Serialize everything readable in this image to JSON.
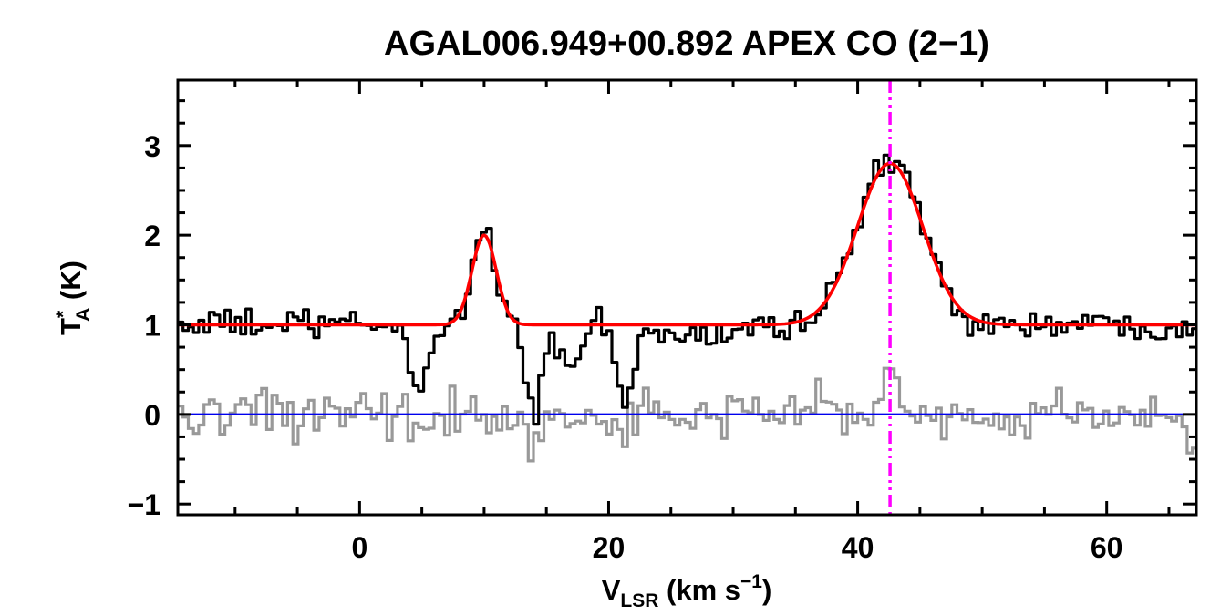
{
  "figure": {
    "background": "#ffffff",
    "frame_color": "#000000"
  },
  "chart_data": {
    "type": "line",
    "title": "AGAL006.949+00.892  APEX CO (2−1)",
    "xlabel": {
      "v": "V",
      "sub": "LSR",
      "mid": " (km s",
      "sup": "−1",
      "close": ")"
    },
    "ylabel": {
      "t": "T",
      "sup": "*",
      "sub": "A",
      "unit": " (K)"
    },
    "xlim": [
      -14.6,
      67.2
    ],
    "ylim": [
      -1.12,
      3.73
    ],
    "xticks": [
      0,
      20,
      40,
      60
    ],
    "xminor_step": 5,
    "yticks": [
      -1,
      0,
      1,
      2,
      3
    ],
    "yminor_step": 0.25,
    "channel_width": 0.42,
    "baseline_level": 1.0,
    "series": [
      {
        "name": "spectrum",
        "style": "histogram",
        "color": "#000000",
        "line_width": 3.2,
        "baseline": 1.0,
        "noise_rms": 0.085,
        "seed": 1234,
        "emission": [
          {
            "center": 10.0,
            "amplitude": 1.02,
            "fwhm": 2.3,
            "peak_T": 2.0
          },
          {
            "center": 42.6,
            "amplitude": 1.82,
            "fwhm": 6.2,
            "peak_T": 2.82
          }
        ],
        "absorption": [
          {
            "center": 4.8,
            "depth": 0.72,
            "fwhm": 1.7
          },
          {
            "center": 13.9,
            "depth": 1.02,
            "fwhm": 1.4
          },
          {
            "center": 16.9,
            "depth": 0.5,
            "fwhm": 2.0
          },
          {
            "center": 21.3,
            "depth": 0.82,
            "fwhm": 1.6
          },
          {
            "center": 26.5,
            "depth": 0.14,
            "fwhm": 7.0
          }
        ]
      },
      {
        "name": "gaussian-fit",
        "style": "smooth",
        "color": "#ff0000",
        "line_width": 3.5,
        "baseline": 1.0,
        "components": [
          {
            "center": 10.0,
            "amplitude": 1.0,
            "fwhm": 2.3,
            "peak_T": 2.0
          },
          {
            "center": 42.6,
            "amplitude": 1.8,
            "fwhm": 6.2,
            "peak_T": 2.8
          }
        ]
      },
      {
        "name": "residual",
        "style": "histogram",
        "color": "#999999",
        "line_width": 3.2,
        "baseline": 0.0,
        "noise_rms": 0.12,
        "seed": 987,
        "spikes": [
          {
            "center": -13.0,
            "amplitude": -0.32,
            "fwhm": 0.9
          },
          {
            "center": 5.0,
            "amplitude": -0.38,
            "fwhm": 1.1
          },
          {
            "center": 14.0,
            "amplitude": -0.32,
            "fwhm": 0.9
          },
          {
            "center": 21.2,
            "amplitude": -0.26,
            "fwhm": 0.9
          },
          {
            "center": 37.0,
            "amplitude": 0.28,
            "fwhm": 1.2
          },
          {
            "center": 42.6,
            "amplitude": 0.38,
            "fwhm": 1.6
          },
          {
            "center": 66.8,
            "amplitude": -0.5,
            "fwhm": 1.0
          }
        ]
      },
      {
        "name": "zero-baseline",
        "style": "hline",
        "color": "#0000ee",
        "line_width": 2.4,
        "y": 0.0
      }
    ],
    "vline": {
      "name": "fitted-velocity-marker",
      "x": 42.6,
      "color": "#ff00ff",
      "line_width": 3.5,
      "style": "dash-dot-dot"
    }
  }
}
